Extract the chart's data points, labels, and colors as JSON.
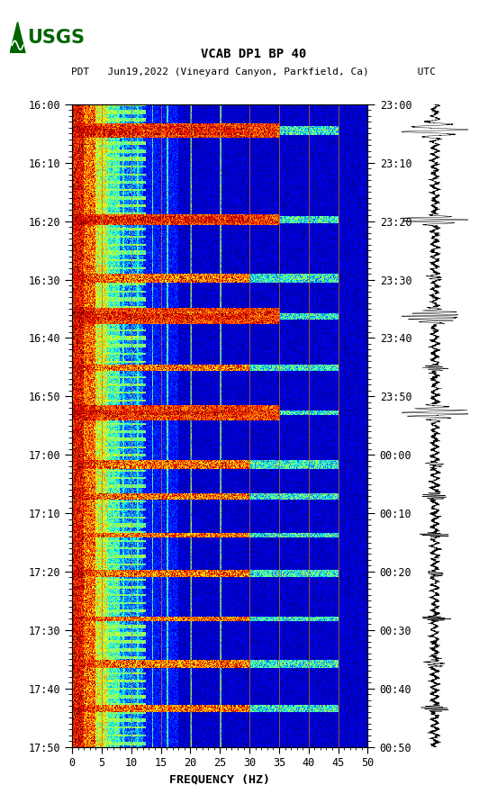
{
  "title_line1": "VCAB DP1 BP 40",
  "title_line2": "PDT   Jun19,2022 (Vineyard Canyon, Parkfield, Ca)        UTC",
  "xlabel": "FREQUENCY (HZ)",
  "left_time_labels": [
    "16:00",
    "16:10",
    "16:20",
    "16:30",
    "16:40",
    "16:50",
    "17:00",
    "17:10",
    "17:20",
    "17:30",
    "17:40",
    "17:50"
  ],
  "right_time_labels": [
    "23:00",
    "23:10",
    "23:20",
    "23:30",
    "23:40",
    "23:50",
    "00:00",
    "00:10",
    "00:20",
    "00:30",
    "00:40",
    "00:50"
  ],
  "freq_min": 0,
  "freq_max": 50,
  "bg_color": "white",
  "spectrogram_cmap": "jet",
  "logo_color": "#006400",
  "font_family": "monospace",
  "vertical_lines_freq": [
    5,
    10,
    15,
    20,
    25,
    30,
    35,
    40,
    45
  ],
  "xticks": [
    0,
    5,
    10,
    15,
    20,
    25,
    30,
    35,
    40,
    45,
    50
  ],
  "event_times_norm": [
    0.04,
    0.18,
    0.27,
    0.33,
    0.41,
    0.48,
    0.56,
    0.61,
    0.67,
    0.73,
    0.8,
    0.87,
    0.94
  ],
  "event_times_large": [
    0.04,
    0.18,
    0.33,
    0.48
  ],
  "seed": 1234
}
